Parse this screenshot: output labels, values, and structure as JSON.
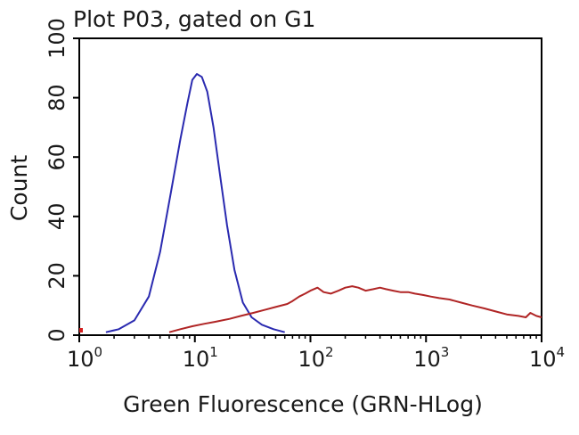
{
  "chart_data": {
    "type": "line",
    "title": "Plot P03, gated on G1",
    "xlabel": "Green Fluorescence (GRN-HLog)",
    "ylabel": "Count",
    "x_scale": "log",
    "xlim": [
      1,
      10000
    ],
    "ylim": [
      0,
      100
    ],
    "x_ticks": [
      {
        "base": "10",
        "exp": "0",
        "value": 1
      },
      {
        "base": "10",
        "exp": "1",
        "value": 10
      },
      {
        "base": "10",
        "exp": "2",
        "value": 100
      },
      {
        "base": "10",
        "exp": "3",
        "value": 1000
      },
      {
        "base": "10",
        "exp": "4",
        "value": 10000
      }
    ],
    "y_ticks": [
      {
        "label": "0",
        "value": 0
      },
      {
        "label": "20",
        "value": 20
      },
      {
        "label": "40",
        "value": 40
      },
      {
        "label": "60",
        "value": 60
      },
      {
        "label": "80",
        "value": 80
      },
      {
        "label": "100",
        "value": 100
      }
    ],
    "grid": false,
    "series": [
      {
        "color": "#2a2ab0",
        "points": [
          [
            1.7,
            1
          ],
          [
            2.2,
            2
          ],
          [
            3.0,
            5
          ],
          [
            4.0,
            13
          ],
          [
            5.0,
            28
          ],
          [
            6.2,
            48
          ],
          [
            7.5,
            66
          ],
          [
            8.6,
            78
          ],
          [
            9.5,
            86
          ],
          [
            10.4,
            88
          ],
          [
            11.5,
            87
          ],
          [
            12.8,
            82
          ],
          [
            14.5,
            70
          ],
          [
            16.5,
            54
          ],
          [
            19.0,
            37
          ],
          [
            22.0,
            22
          ],
          [
            26.0,
            11
          ],
          [
            31.0,
            6
          ],
          [
            38.0,
            3.5
          ],
          [
            48.0,
            2
          ],
          [
            60.0,
            1
          ]
        ]
      },
      {
        "color": "#b02525",
        "points": [
          [
            6.0,
            1
          ],
          [
            7.5,
            2
          ],
          [
            9.5,
            3
          ],
          [
            12.0,
            3.8
          ],
          [
            15.0,
            4.5
          ],
          [
            20.0,
            5.5
          ],
          [
            25.0,
            6.5
          ],
          [
            32.0,
            7.5
          ],
          [
            40.0,
            8.5
          ],
          [
            50.0,
            9.5
          ],
          [
            63.0,
            10.5
          ],
          [
            70.0,
            11.5
          ],
          [
            80.0,
            13
          ],
          [
            90.0,
            14
          ],
          [
            100.0,
            15
          ],
          [
            115.0,
            16
          ],
          [
            130.0,
            14.5
          ],
          [
            150.0,
            14
          ],
          [
            175.0,
            15
          ],
          [
            200.0,
            16
          ],
          [
            230.0,
            16.5
          ],
          [
            260.0,
            16
          ],
          [
            300.0,
            15
          ],
          [
            350.0,
            15.5
          ],
          [
            400.0,
            16
          ],
          [
            450.0,
            15.5
          ],
          [
            520.0,
            15
          ],
          [
            600.0,
            14.5
          ],
          [
            700.0,
            14.5
          ],
          [
            800.0,
            14
          ],
          [
            950.0,
            13.5
          ],
          [
            1100.0,
            13
          ],
          [
            1300.0,
            12.5
          ],
          [
            1600.0,
            12
          ],
          [
            2000.0,
            11
          ],
          [
            2500.0,
            10
          ],
          [
            3200.0,
            9
          ],
          [
            4000.0,
            8
          ],
          [
            5000.0,
            7
          ],
          [
            6300.0,
            6.5
          ],
          [
            7300.0,
            6
          ],
          [
            8000.0,
            7.5
          ],
          [
            9000.0,
            6.5
          ],
          [
            10000.0,
            6
          ]
        ]
      }
    ]
  }
}
